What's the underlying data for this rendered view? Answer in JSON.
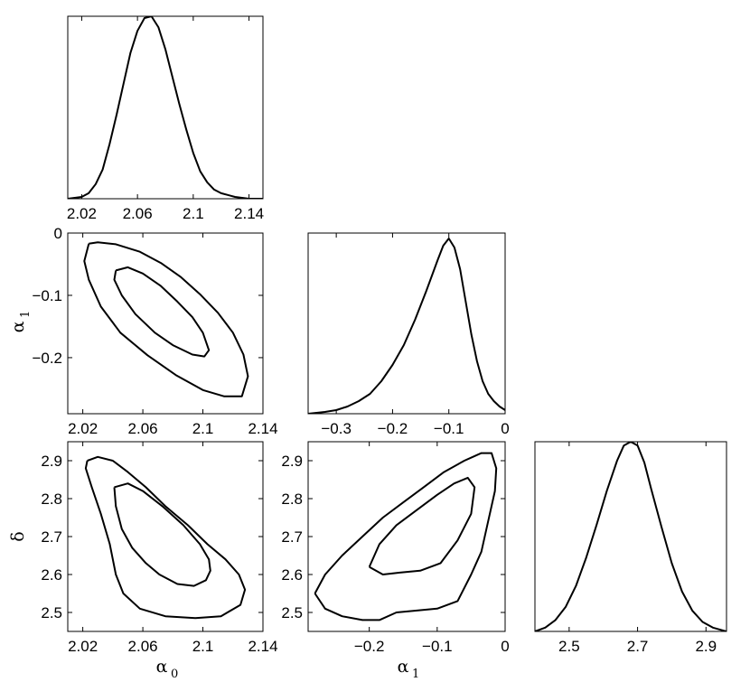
{
  "chart_data": [
    {
      "id": "a0_marginal",
      "type": "line",
      "xlim": [
        2.01,
        2.15
      ],
      "ylim": [
        0,
        1.0
      ],
      "xticks": [
        2.02,
        2.06,
        2.1,
        2.14
      ],
      "xtick_labels": [
        "2.02",
        "2.06",
        "2.1",
        "2.14"
      ],
      "yticks": [],
      "ytick_labels": [],
      "xlabel": "",
      "ylabel": "",
      "series": [
        {
          "x": [
            2.01,
            2.02,
            2.025,
            2.03,
            2.035,
            2.04,
            2.045,
            2.05,
            2.055,
            2.06,
            2.065,
            2.07,
            2.075,
            2.08,
            2.085,
            2.09,
            2.095,
            2.1,
            2.105,
            2.11,
            2.115,
            2.12,
            2.13,
            2.14,
            2.15
          ],
          "y": [
            0.0,
            0.01,
            0.03,
            0.08,
            0.16,
            0.3,
            0.46,
            0.63,
            0.8,
            0.92,
            0.99,
            1.0,
            0.94,
            0.82,
            0.67,
            0.52,
            0.38,
            0.25,
            0.15,
            0.09,
            0.05,
            0.03,
            0.01,
            0.0,
            0.0
          ]
        }
      ]
    },
    {
      "id": "a0_a1_contour",
      "type": "line",
      "xlim": [
        2.01,
        2.14
      ],
      "ylim": [
        -0.29,
        0.0
      ],
      "xticks": [
        2.02,
        2.06,
        2.1,
        2.14
      ],
      "xtick_labels": [
        "2.02",
        "2.06",
        "2.1",
        "2.14"
      ],
      "yticks": [
        0,
        -0.1,
        -0.2
      ],
      "ytick_labels": [
        "0",
        "−0.1",
        "−0.2"
      ],
      "xlabel": "",
      "ylabel": "α",
      "ylabel_sub": "1",
      "series": [
        {
          "x": [
            2.024,
            2.03,
            2.042,
            2.058,
            2.072,
            2.085,
            2.098,
            2.11,
            2.12,
            2.127,
            2.13,
            2.126,
            2.114,
            2.1,
            2.082,
            2.063,
            2.045,
            2.032,
            2.024,
            2.021,
            2.024
          ],
          "y": [
            -0.017,
            -0.015,
            -0.018,
            -0.03,
            -0.048,
            -0.07,
            -0.098,
            -0.128,
            -0.16,
            -0.195,
            -0.23,
            -0.262,
            -0.262,
            -0.252,
            -0.228,
            -0.196,
            -0.16,
            -0.118,
            -0.075,
            -0.045,
            -0.017
          ]
        },
        {
          "x": [
            2.042,
            2.05,
            2.06,
            2.072,
            2.083,
            2.093,
            2.1,
            2.104,
            2.101,
            2.093,
            2.08,
            2.068,
            2.055,
            2.046,
            2.041,
            2.042
          ],
          "y": [
            -0.06,
            -0.055,
            -0.065,
            -0.085,
            -0.11,
            -0.135,
            -0.16,
            -0.188,
            -0.198,
            -0.195,
            -0.18,
            -0.16,
            -0.13,
            -0.1,
            -0.075,
            -0.06
          ]
        }
      ]
    },
    {
      "id": "a1_marginal",
      "type": "line",
      "xlim": [
        -0.35,
        0.0
      ],
      "ylim": [
        0,
        1.0
      ],
      "xticks": [
        -0.3,
        -0.2,
        -0.1,
        0
      ],
      "xtick_labels": [
        "−0.3",
        "−0.2",
        "−0.1",
        "0"
      ],
      "yticks": [],
      "ytick_labels": [],
      "xlabel": "",
      "ylabel": "",
      "series": [
        {
          "x": [
            -0.35,
            -0.32,
            -0.3,
            -0.28,
            -0.26,
            -0.24,
            -0.22,
            -0.2,
            -0.18,
            -0.16,
            -0.14,
            -0.12,
            -0.11,
            -0.1,
            -0.09,
            -0.08,
            -0.07,
            -0.06,
            -0.05,
            -0.04,
            -0.03,
            -0.02,
            -0.01,
            0.0
          ],
          "y": [
            0.0,
            0.01,
            0.02,
            0.04,
            0.07,
            0.11,
            0.18,
            0.27,
            0.38,
            0.52,
            0.68,
            0.85,
            0.93,
            0.97,
            0.92,
            0.8,
            0.62,
            0.44,
            0.29,
            0.18,
            0.11,
            0.07,
            0.04,
            0.02
          ]
        }
      ]
    },
    {
      "id": "a0_delta_contour",
      "type": "line",
      "xlim": [
        2.01,
        2.14
      ],
      "ylim": [
        2.45,
        2.95
      ],
      "xticks": [
        2.02,
        2.06,
        2.1,
        2.14
      ],
      "xtick_labels": [
        "2.02",
        "2.06",
        "2.1",
        "2.14"
      ],
      "yticks": [
        2.5,
        2.6,
        2.7,
        2.8,
        2.9
      ],
      "ytick_labels": [
        "2.5",
        "2.6",
        "2.7",
        "2.8",
        "2.9"
      ],
      "xlabel": "α",
      "xlabel_sub": "0",
      "ylabel": "δ",
      "series": [
        {
          "x": [
            2.023,
            2.03,
            2.04,
            2.05,
            2.062,
            2.075,
            2.09,
            2.103,
            2.115,
            2.124,
            2.128,
            2.125,
            2.112,
            2.095,
            2.075,
            2.058,
            2.047,
            2.042,
            2.038,
            2.032,
            2.026,
            2.022,
            2.023
          ],
          "y": [
            2.9,
            2.91,
            2.9,
            2.87,
            2.83,
            2.78,
            2.73,
            2.68,
            2.64,
            2.6,
            2.56,
            2.52,
            2.49,
            2.485,
            2.49,
            2.51,
            2.55,
            2.6,
            2.68,
            2.76,
            2.83,
            2.88,
            2.9
          ]
        },
        {
          "x": [
            2.041,
            2.05,
            2.06,
            2.073,
            2.087,
            2.098,
            2.104,
            2.105,
            2.102,
            2.094,
            2.083,
            2.071,
            2.062,
            2.053,
            2.046,
            2.042,
            2.041
          ],
          "y": [
            2.83,
            2.84,
            2.82,
            2.78,
            2.73,
            2.68,
            2.64,
            2.61,
            2.585,
            2.57,
            2.575,
            2.6,
            2.63,
            2.67,
            2.72,
            2.78,
            2.83
          ]
        }
      ]
    },
    {
      "id": "a1_delta_contour",
      "type": "line",
      "xlim": [
        -0.29,
        0.0
      ],
      "ylim": [
        2.45,
        2.95
      ],
      "xticks": [
        -0.2,
        -0.1,
        0
      ],
      "xtick_labels": [
        "−0.2",
        "−0.1",
        "0"
      ],
      "yticks": [
        2.5,
        2.6,
        2.7,
        2.8,
        2.9
      ],
      "ytick_labels": [
        "2.5",
        "2.6",
        "2.7",
        "2.8",
        "2.9"
      ],
      "xlabel": "α",
      "xlabel_sub": "1",
      "ylabel": "",
      "series": [
        {
          "x": [
            -0.28,
            -0.265,
            -0.24,
            -0.21,
            -0.18,
            -0.15,
            -0.12,
            -0.09,
            -0.06,
            -0.035,
            -0.02,
            -0.013,
            -0.015,
            -0.025,
            -0.035,
            -0.05,
            -0.07,
            -0.1,
            -0.13,
            -0.16,
            -0.185,
            -0.21,
            -0.24,
            -0.265,
            -0.28
          ],
          "y": [
            2.55,
            2.6,
            2.65,
            2.7,
            2.75,
            2.79,
            2.83,
            2.87,
            2.9,
            2.92,
            2.92,
            2.88,
            2.82,
            2.74,
            2.66,
            2.6,
            2.53,
            2.51,
            2.505,
            2.5,
            2.48,
            2.48,
            2.49,
            2.51,
            2.55
          ]
        },
        {
          "x": [
            -0.2,
            -0.185,
            -0.16,
            -0.13,
            -0.1,
            -0.075,
            -0.055,
            -0.045,
            -0.05,
            -0.07,
            -0.095,
            -0.125,
            -0.155,
            -0.18,
            -0.2
          ],
          "y": [
            2.62,
            2.68,
            2.73,
            2.77,
            2.81,
            2.84,
            2.855,
            2.83,
            2.76,
            2.69,
            2.63,
            2.61,
            2.605,
            2.6,
            2.62
          ]
        }
      ]
    },
    {
      "id": "delta_marginal",
      "type": "line",
      "xlim": [
        2.4,
        2.96
      ],
      "ylim": [
        0,
        1.0
      ],
      "xticks": [
        2.5,
        2.7,
        2.9
      ],
      "xtick_labels": [
        "2.5",
        "2.7",
        "2.9"
      ],
      "yticks": [],
      "ytick_labels": [],
      "xlabel": "",
      "ylabel": "",
      "series": [
        {
          "x": [
            2.4,
            2.43,
            2.46,
            2.49,
            2.52,
            2.55,
            2.58,
            2.61,
            2.64,
            2.66,
            2.68,
            2.7,
            2.72,
            2.74,
            2.77,
            2.8,
            2.83,
            2.86,
            2.89,
            2.92,
            2.96
          ],
          "y": [
            0.0,
            0.02,
            0.06,
            0.13,
            0.24,
            0.39,
            0.56,
            0.74,
            0.9,
            0.98,
            1.0,
            0.98,
            0.89,
            0.75,
            0.55,
            0.36,
            0.21,
            0.11,
            0.05,
            0.02,
            0.0
          ]
        }
      ]
    }
  ]
}
